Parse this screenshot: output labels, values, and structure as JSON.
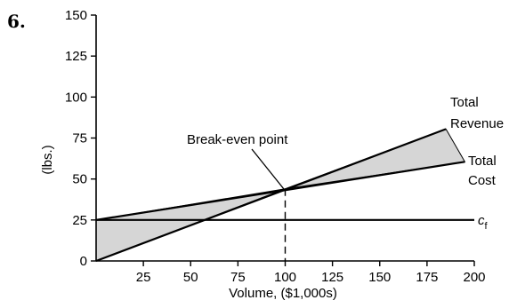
{
  "problem_number": "6.",
  "chart_data": {
    "type": "line",
    "title": "",
    "xlabel": "Volume, ($1,000s)",
    "ylabel": "(lbs.)",
    "xlim": [
      0,
      200
    ],
    "ylim": [
      0,
      150
    ],
    "x_ticks": [
      25,
      50,
      75,
      100,
      125,
      150,
      175,
      200
    ],
    "y_ticks": [
      0,
      25,
      50,
      75,
      100,
      125,
      150
    ],
    "grid": false,
    "series": [
      {
        "name": "Total Revenue",
        "x": [
          0,
          185
        ],
        "y": [
          0,
          80.5
        ]
      },
      {
        "name": "Total Cost",
        "x": [
          0,
          195
        ],
        "y": [
          25,
          60.5
        ]
      },
      {
        "name": "c_f",
        "x": [
          0,
          200
        ],
        "y": [
          25,
          25
        ]
      }
    ],
    "shaded_regions": [
      {
        "name": "loss",
        "points": [
          [
            0,
            0
          ],
          [
            0,
            25
          ],
          [
            100,
            44
          ]
        ]
      },
      {
        "name": "profit",
        "points": [
          [
            100,
            44
          ],
          [
            185,
            80.5
          ],
          [
            195,
            60.5
          ]
        ]
      }
    ],
    "annotations": [
      {
        "text": "Break-even point",
        "x": 100,
        "y": 44
      },
      {
        "text": "c",
        "subscript": "f"
      }
    ],
    "series_labels": {
      "revenue_line1": "Total",
      "revenue_line2": "Revenue",
      "cost_line1": "Total",
      "cost_line2": "Cost"
    },
    "breakeven": {
      "x": 100,
      "y": 44
    }
  }
}
